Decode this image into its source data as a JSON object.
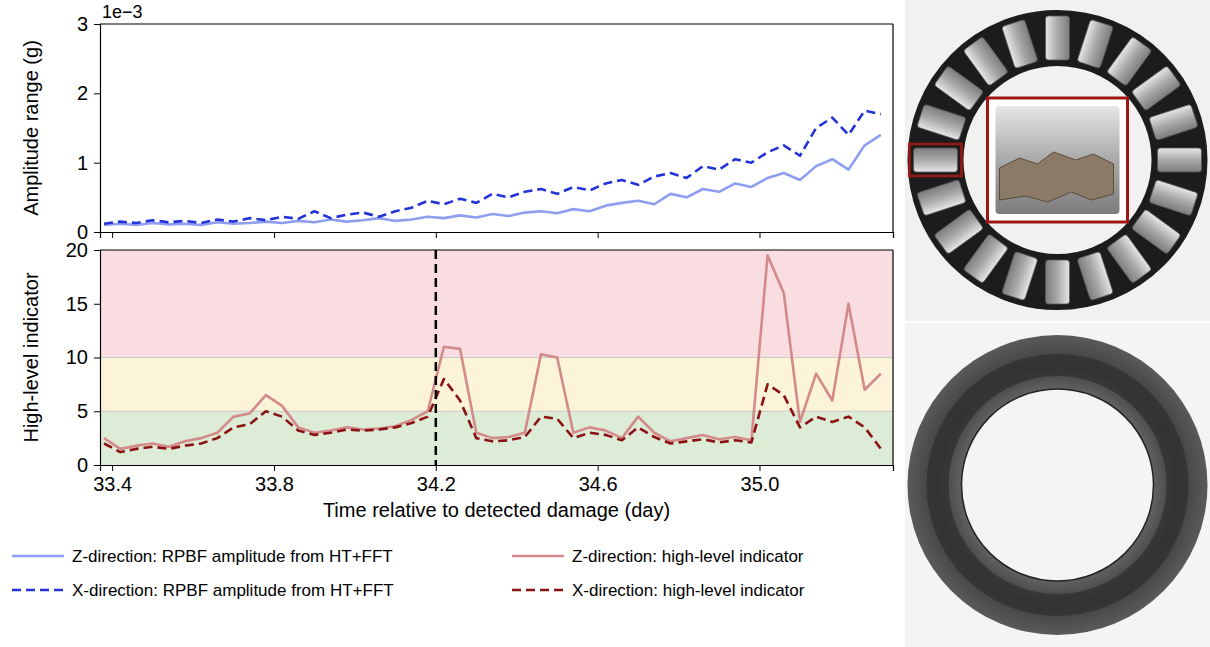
{
  "chart_data": [
    {
      "type": "line",
      "y_label": "Amplitude range (g)",
      "y_offset_label": "1e−3",
      "xlim": [
        33.37,
        35.33
      ],
      "xticks": [
        33.4,
        33.8,
        34.2,
        34.6,
        35.0
      ],
      "ylim": [
        0,
        0.003
      ],
      "yticks": [
        0,
        {
          "value": 0.001,
          "label": "1"
        },
        {
          "value": 0.002,
          "label": "2"
        },
        {
          "value": 0.003,
          "label": "3"
        }
      ],
      "tick_labels": "y",
      "grid": false,
      "legend": "bottom",
      "x": [
        33.38,
        33.42,
        33.46,
        33.5,
        33.54,
        33.58,
        33.62,
        33.66,
        33.7,
        33.74,
        33.78,
        33.82,
        33.86,
        33.9,
        33.94,
        33.98,
        34.02,
        34.06,
        34.1,
        34.14,
        34.18,
        34.22,
        34.26,
        34.3,
        34.34,
        34.38,
        34.42,
        34.46,
        34.5,
        34.54,
        34.58,
        34.62,
        34.66,
        34.7,
        34.74,
        34.78,
        34.82,
        34.86,
        34.9,
        34.94,
        34.98,
        35.02,
        35.06,
        35.1,
        35.14,
        35.18,
        35.22,
        35.26,
        35.3
      ],
      "series": [
        {
          "name": "Z-direction: RPBF amplitude from HT+FFT",
          "color": "#8f9ef0",
          "line_style": "solid",
          "values": [
            0.0001,
            0.00012,
            0.0001,
            0.00013,
            0.00011,
            0.00012,
            0.0001,
            0.00014,
            0.00012,
            0.00013,
            0.00015,
            0.00013,
            0.00016,
            0.00014,
            0.00018,
            0.00015,
            0.00017,
            0.0002,
            0.00016,
            0.00018,
            0.00022,
            0.0002,
            0.00024,
            0.00021,
            0.00026,
            0.00023,
            0.00028,
            0.0003,
            0.00027,
            0.00033,
            0.0003,
            0.00038,
            0.00042,
            0.00045,
            0.0004,
            0.00055,
            0.0005,
            0.00062,
            0.00058,
            0.0007,
            0.00065,
            0.00078,
            0.00085,
            0.00075,
            0.00095,
            0.00105,
            0.0009,
            0.00125,
            0.0014
          ]
        },
        {
          "name": "X-direction: RPBF amplitude from HT+FFT",
          "color": "#2433d8",
          "line_style": "dashed",
          "values": [
            0.00012,
            0.00015,
            0.00013,
            0.00017,
            0.00014,
            0.00016,
            0.00013,
            0.00018,
            0.00015,
            0.0002,
            0.00017,
            0.00022,
            0.00019,
            0.0003,
            0.0002,
            0.00025,
            0.00028,
            0.00022,
            0.0003,
            0.00035,
            0.00045,
            0.0004,
            0.00048,
            0.00042,
            0.00055,
            0.0005,
            0.00058,
            0.00062,
            0.00055,
            0.00065,
            0.0006,
            0.0007,
            0.00075,
            0.00068,
            0.0008,
            0.00085,
            0.00078,
            0.00095,
            0.0009,
            0.00105,
            0.001,
            0.00115,
            0.00125,
            0.0011,
            0.0015,
            0.00165,
            0.0014,
            0.00175,
            0.0017
          ]
        }
      ]
    },
    {
      "type": "line",
      "x_label": "Time relative to detected damage (day)",
      "y_label": "High-level indicator",
      "xlim": [
        33.37,
        35.33
      ],
      "xticks": [
        33.4,
        33.8,
        34.2,
        34.6,
        {
          "value": 35,
          "label": "35.0"
        }
      ],
      "ylim": [
        0,
        20
      ],
      "yticks": [
        0,
        5,
        10,
        15,
        20
      ],
      "grid": false,
      "legend": "bottom",
      "bands": [
        {
          "from": 0,
          "to": 5,
          "color": "#dcecd6"
        },
        {
          "from": 5,
          "to": 10,
          "color": "#fcf4d8"
        },
        {
          "from": 10,
          "to": 20,
          "color": "#fadde0"
        }
      ],
      "vlines": [
        {
          "x": 34.2,
          "color": "#000000",
          "line_style": "dashed"
        }
      ],
      "x": [
        33.38,
        33.42,
        33.46,
        33.5,
        33.54,
        33.58,
        33.62,
        33.66,
        33.7,
        33.74,
        33.78,
        33.82,
        33.86,
        33.9,
        33.94,
        33.98,
        34.02,
        34.06,
        34.1,
        34.14,
        34.18,
        34.22,
        34.26,
        34.3,
        34.34,
        34.38,
        34.42,
        34.46,
        34.5,
        34.54,
        34.58,
        34.62,
        34.66,
        34.7,
        34.74,
        34.78,
        34.82,
        34.86,
        34.9,
        34.94,
        34.98,
        35.02,
        35.06,
        35.1,
        35.14,
        35.18,
        35.22,
        35.26,
        35.3
      ],
      "series": [
        {
          "name": "Z-direction: high-level indicator",
          "color": "#d48a8a",
          "line_style": "solid",
          "values": [
            2.5,
            1.5,
            1.8,
            2.0,
            1.7,
            2.2,
            2.5,
            3.0,
            4.5,
            4.8,
            6.5,
            5.5,
            3.5,
            3.0,
            3.2,
            3.5,
            3.3,
            3.4,
            3.6,
            4.2,
            5.0,
            11.0,
            10.8,
            3.0,
            2.5,
            2.6,
            3.0,
            10.3,
            10.0,
            3.0,
            3.5,
            3.2,
            2.5,
            4.5,
            3.0,
            2.2,
            2.5,
            2.8,
            2.4,
            2.6,
            2.3,
            19.5,
            16.0,
            4.0,
            8.5,
            6.0,
            15.0,
            7.0,
            8.5
          ]
        },
        {
          "name": "X-direction: high-level indicator",
          "color": "#8b1212",
          "line_style": "dashed",
          "values": [
            2.0,
            1.2,
            1.5,
            1.7,
            1.5,
            1.8,
            2.0,
            2.5,
            3.5,
            3.8,
            5.0,
            4.5,
            3.2,
            2.8,
            3.0,
            3.3,
            3.2,
            3.3,
            3.5,
            3.9,
            4.5,
            8.0,
            6.0,
            2.5,
            2.2,
            2.3,
            2.6,
            4.5,
            4.3,
            2.5,
            3.0,
            2.8,
            2.3,
            3.5,
            2.6,
            2.0,
            2.2,
            2.4,
            2.1,
            2.3,
            2.1,
            7.5,
            6.5,
            3.5,
            4.5,
            4.0,
            4.5,
            3.5,
            1.5
          ]
        }
      ]
    }
  ]
}
